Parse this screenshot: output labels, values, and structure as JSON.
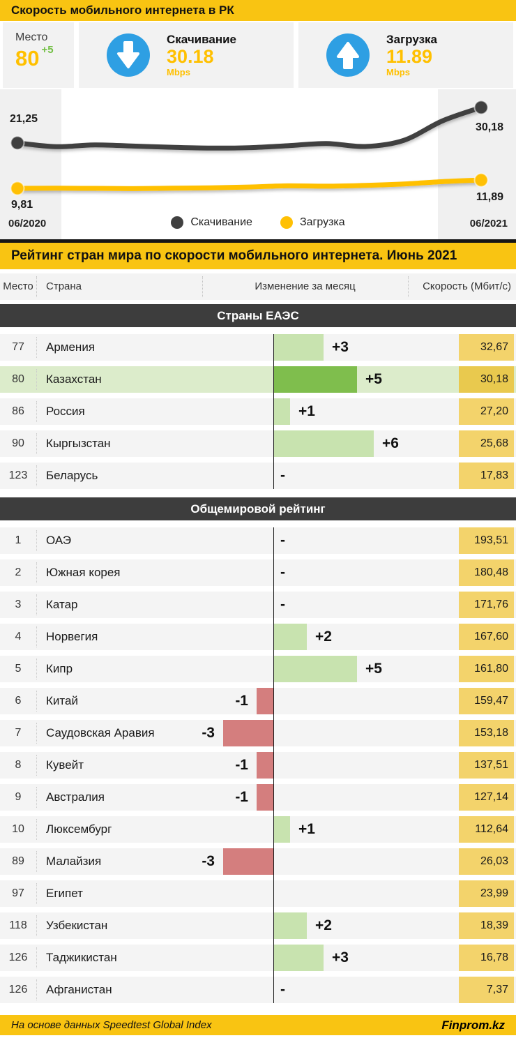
{
  "colors": {
    "amber": "#F9C412",
    "card_bg": "#F2F2F2",
    "blue": "#2E9FE3",
    "value_yellow": "#FFC000",
    "delta_green": "#72BF44",
    "line_dark": "#404040",
    "line_yellow": "#FFC004",
    "section_bar": "#3D3D3D",
    "row_bg": "#F4F4F4",
    "row_highlight": "#DCECCB",
    "bar_positive": "#C8E3AF",
    "bar_positive_strong": "#7FBE4D",
    "bar_negative": "#D47E7E",
    "speed_box": "#F3D36B",
    "speed_box_strong": "#E9C94E"
  },
  "header": {
    "title": "Скорость мобильного интернета в РК"
  },
  "stats": {
    "place": {
      "label": "Место",
      "value": "80",
      "delta": "+5"
    },
    "download": {
      "label": "Скачивание",
      "value": "30.18",
      "unit": "Mbps",
      "icon": "arrow-down-circle-icon"
    },
    "upload": {
      "label": "Загрузка",
      "value": "11.89",
      "unit": "Mbps",
      "icon": "arrow-up-circle-icon"
    }
  },
  "chart_data": {
    "type": "line",
    "x_labels": {
      "start": "06/2020",
      "end": "06/2021"
    },
    "ylim": [
      5,
      35
    ],
    "grid": false,
    "legend_position": "bottom-center",
    "series": [
      {
        "name": "Скачивание",
        "color": "#404040",
        "values": [
          21.25,
          20.3,
          20.75,
          20.45,
          20.15,
          19.95,
          20.05,
          20.55,
          21.1,
          20.35,
          21.9,
          26.8,
          30.18
        ],
        "start_label": "21,25",
        "end_label": "30,18"
      },
      {
        "name": "Загрузка",
        "color": "#FFC004",
        "values": [
          9.81,
          9.85,
          9.8,
          9.75,
          9.85,
          9.95,
          10.15,
          10.45,
          10.35,
          10.55,
          10.9,
          11.5,
          11.89
        ],
        "start_label": "9,81",
        "end_label": "11,89"
      }
    ]
  },
  "ranking": {
    "title": "Рейтинг стран мира по скорости мобильного интернета. Июнь 2021",
    "columns": {
      "place": "Место",
      "country": "Страна",
      "change": "Изменение за месяц",
      "speed": "Скорость (Мбит/с)"
    },
    "sections": [
      {
        "title": "Страны ЕАЭС",
        "rows": [
          {
            "place": "77",
            "country": "Армения",
            "change": 3,
            "change_label": "+3",
            "speed": "32,67"
          },
          {
            "place": "80",
            "country": "Казахстан",
            "change": 5,
            "change_label": "+5",
            "speed": "30,18",
            "highlight": true
          },
          {
            "place": "86",
            "country": "Россия",
            "change": 1,
            "change_label": "+1",
            "speed": "27,20"
          },
          {
            "place": "90",
            "country": "Кыргызстан",
            "change": 6,
            "change_label": "+6",
            "speed": "25,68"
          },
          {
            "place": "123",
            "country": "Беларусь",
            "change": 0,
            "change_label": "-",
            "speed": "17,83"
          }
        ]
      },
      {
        "title": "Общемировой рейтинг",
        "rows": [
          {
            "place": "1",
            "country": "ОАЭ",
            "change": 0,
            "change_label": "-",
            "speed": "193,51"
          },
          {
            "place": "2",
            "country": "Южная корея",
            "change": 0,
            "change_label": "-",
            "speed": "180,48"
          },
          {
            "place": "3",
            "country": "Катар",
            "change": 0,
            "change_label": "-",
            "speed": "171,76"
          },
          {
            "place": "4",
            "country": "Норвегия",
            "change": 2,
            "change_label": "+2",
            "speed": "167,60"
          },
          {
            "place": "5",
            "country": "Кипр",
            "change": 5,
            "change_label": "+5",
            "speed": "161,80"
          },
          {
            "place": "6",
            "country": "Китай",
            "change": -1,
            "change_label": "-1",
            "speed": "159,47"
          },
          {
            "place": "7",
            "country": "Саудовская Аравия",
            "change": -3,
            "change_label": "-3",
            "speed": "153,18"
          },
          {
            "place": "8",
            "country": "Кувейт",
            "change": -1,
            "change_label": "-1",
            "speed": "137,51"
          },
          {
            "place": "9",
            "country": "Австралия",
            "change": -1,
            "change_label": "-1",
            "speed": "127,14"
          },
          {
            "place": "10",
            "country": "Люксембург",
            "change": 1,
            "change_label": "+1",
            "speed": "112,64"
          },
          {
            "place": "89",
            "country": "Малайзия",
            "change": -3,
            "change_label": "-3",
            "speed": "26,03"
          },
          {
            "place": "97",
            "country": "Египет",
            "change": null,
            "change_label": "",
            "speed": "23,99"
          },
          {
            "place": "118",
            "country": "Узбекистан",
            "change": 2,
            "change_label": "+2",
            "speed": "18,39"
          },
          {
            "place": "126",
            "country": "Таджикистан",
            "change": 3,
            "change_label": "+3",
            "speed": "16,78"
          },
          {
            "place": "126",
            "country": "Афганистан",
            "change": 0,
            "change_label": "-",
            "speed": "7,37"
          }
        ]
      }
    ]
  },
  "footer": {
    "source": "На основе данных Speedtest Global Index",
    "brand": "Finprom.kz"
  }
}
